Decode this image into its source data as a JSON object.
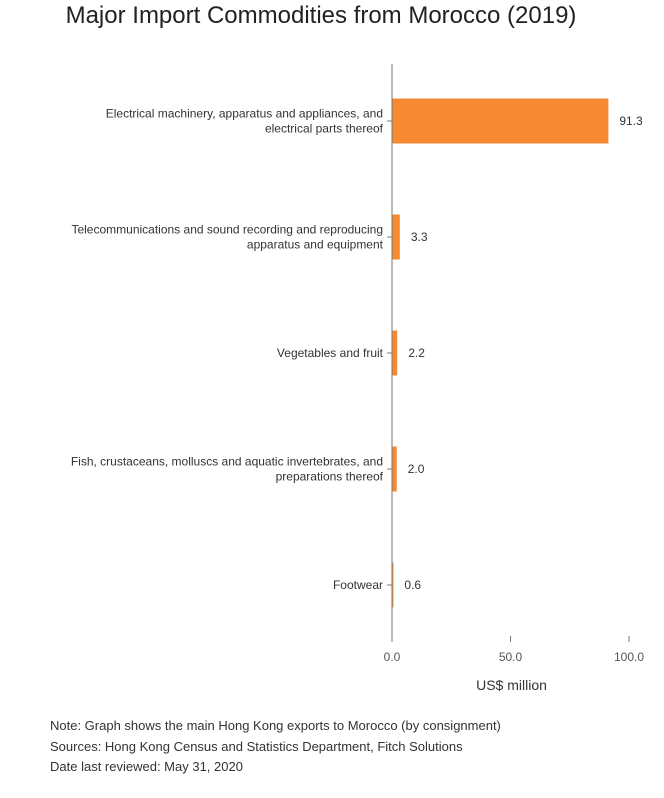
{
  "chart_data": {
    "type": "bar",
    "orientation": "horizontal",
    "title": "Major Import Commodities from Morocco (2019)",
    "categories": [
      [
        "Electrical machinery, apparatus and appliances, and",
        "electrical parts thereof"
      ],
      [
        "Telecommunications and sound recording and reproducing",
        "apparatus and equipment"
      ],
      [
        "Vegetables and fruit"
      ],
      [
        "Fish, crustaceans, molluscs and aquatic invertebrates, and",
        "preparations thereof"
      ],
      [
        "Footwear"
      ]
    ],
    "values": [
      91.3,
      3.3,
      2.2,
      2.0,
      0.6
    ],
    "value_labels": [
      "91.3",
      "3.3",
      "2.2",
      "2.0",
      "0.6"
    ],
    "xlabel": "US$ million",
    "xlim": [
      0,
      100
    ],
    "xticks": [
      "0.0",
      "50.0",
      "100.0"
    ],
    "bar_color": "#f58a33",
    "grid": false
  },
  "notes": [
    "Note: Graph shows the main Hong Kong exports to Morocco (by consignment)",
    "Sources: Hong Kong Census and Statistics Department, Fitch Solutions",
    "Date last reviewed: May 31, 2020"
  ]
}
